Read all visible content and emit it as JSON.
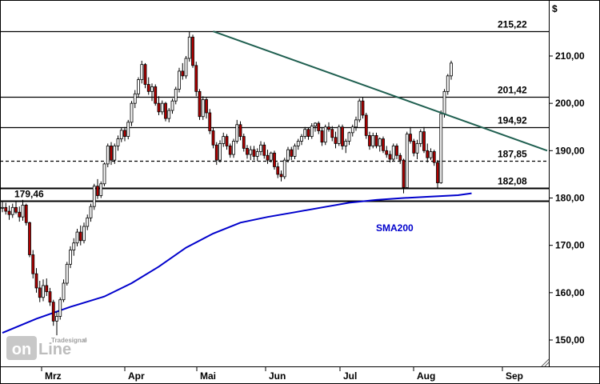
{
  "chart_data": {
    "type": "candlestick",
    "unit_label": "$",
    "ylim": [
      145,
      220
    ],
    "y_ticks": [
      "150,00",
      "160,00",
      "170,00",
      "180,00",
      "190,00",
      "200,00",
      "210,00"
    ],
    "y_tick_values": [
      150,
      160,
      170,
      180,
      190,
      200,
      210
    ],
    "x_ticks": [
      "Mrz",
      "Apr",
      "Mai",
      "Jun",
      "Jul",
      "Aug",
      "Sep"
    ],
    "horizontal_levels": [
      {
        "label": "215,22",
        "value": 215.22,
        "style": "solid"
      },
      {
        "label": "201,42",
        "value": 201.42,
        "style": "solid"
      },
      {
        "label": "194,92",
        "value": 194.92,
        "style": "solid"
      },
      {
        "label": "187,85",
        "value": 187.85,
        "style": "dashed"
      },
      {
        "label": "182,08",
        "value": 182.08,
        "style": "solid-bold"
      },
      {
        "label": "179,46",
        "value": 179.46,
        "style": "solid-bold"
      }
    ],
    "trendline": {
      "color": "#1f5f50",
      "start": {
        "bar": 62,
        "value": 215.2
      },
      "end": {
        "bar": 160,
        "value": 190.0
      }
    },
    "sma": {
      "name": "SMA200",
      "color": "#0000cc",
      "points": [
        [
          0,
          151.5
        ],
        [
          10,
          154.5
        ],
        [
          20,
          157.0
        ],
        [
          30,
          159.2
        ],
        [
          38,
          162.0
        ],
        [
          46,
          165.5
        ],
        [
          54,
          169.5
        ],
        [
          62,
          172.5
        ],
        [
          70,
          174.8
        ],
        [
          78,
          176.0
        ],
        [
          86,
          177.0
        ],
        [
          94,
          178.0
        ],
        [
          102,
          179.0
        ],
        [
          110,
          179.6
        ],
        [
          118,
          180.0
        ],
        [
          126,
          180.3
        ],
        [
          134,
          180.6
        ],
        [
          138,
          181.0
        ]
      ]
    },
    "candles": [
      [
        178.0,
        179.4,
        177.0,
        178.0
      ],
      [
        178.0,
        179.0,
        176.5,
        177.2
      ],
      [
        177.2,
        178.4,
        175.4,
        176.5
      ],
      [
        176.5,
        178.8,
        175.8,
        178.0
      ],
      [
        178.0,
        179.2,
        176.6,
        177.0
      ],
      [
        177.0,
        178.2,
        175.0,
        176.0
      ],
      [
        176.0,
        179.6,
        175.2,
        178.5
      ],
      [
        178.5,
        178.8,
        174.2,
        174.8
      ],
      [
        174.8,
        175.0,
        167.5,
        168.0
      ],
      [
        168.0,
        169.0,
        163.0,
        164.0
      ],
      [
        164.0,
        165.2,
        160.0,
        161.0
      ],
      [
        161.0,
        162.5,
        158.0,
        159.0
      ],
      [
        159.0,
        162.8,
        158.2,
        161.5
      ],
      [
        161.5,
        163.0,
        159.3,
        160.2
      ],
      [
        160.2,
        161.0,
        157.2,
        158.0
      ],
      [
        158.0,
        158.5,
        153.0,
        154.0
      ],
      [
        154.0,
        156.0,
        151.0,
        155.0
      ],
      [
        155.0,
        159.0,
        154.3,
        158.5
      ],
      [
        158.5,
        162.8,
        158.0,
        162.0
      ],
      [
        162.0,
        166.5,
        161.5,
        166.0
      ],
      [
        166.0,
        169.8,
        165.2,
        169.0
      ],
      [
        169.0,
        171.5,
        167.8,
        170.5
      ],
      [
        170.5,
        173.5,
        169.8,
        172.8
      ],
      [
        172.8,
        174.2,
        170.0,
        171.0
      ],
      [
        171.0,
        174.8,
        170.4,
        174.0
      ],
      [
        174.0,
        176.5,
        173.2,
        175.8
      ],
      [
        175.8,
        178.8,
        175.0,
        178.2
      ],
      [
        178.2,
        183.0,
        177.5,
        182.5
      ],
      [
        182.5,
        184.0,
        179.8,
        180.5
      ],
      [
        180.5,
        183.5,
        180.0,
        183.0
      ],
      [
        183.0,
        187.5,
        182.5,
        187.2
      ],
      [
        187.2,
        191.5,
        186.5,
        191.0
      ],
      [
        191.0,
        191.8,
        187.0,
        188.0
      ],
      [
        188.0,
        191.5,
        187.2,
        191.0
      ],
      [
        191.0,
        193.2,
        190.0,
        192.5
      ],
      [
        192.5,
        194.8,
        191.8,
        194.3
      ],
      [
        194.3,
        195.0,
        192.0,
        193.0
      ],
      [
        193.0,
        196.5,
        192.4,
        196.0
      ],
      [
        196.0,
        200.5,
        195.2,
        200.0
      ],
      [
        200.0,
        202.8,
        199.0,
        202.0
      ],
      [
        202.0,
        205.5,
        201.2,
        205.0
      ],
      [
        205.0,
        209.0,
        204.2,
        208.2
      ],
      [
        208.2,
        208.5,
        203.2,
        204.0
      ],
      [
        204.0,
        205.5,
        201.8,
        202.5
      ],
      [
        202.5,
        204.2,
        200.5,
        203.5
      ],
      [
        203.5,
        204.0,
        199.5,
        200.0
      ],
      [
        200.0,
        201.5,
        197.5,
        198.2
      ],
      [
        198.2,
        200.6,
        197.6,
        200.0
      ],
      [
        200.0,
        200.3,
        196.2,
        196.8
      ],
      [
        196.8,
        199.0,
        196.0,
        198.5
      ],
      [
        198.5,
        201.0,
        197.8,
        200.5
      ],
      [
        200.5,
        203.5,
        199.8,
        203.0
      ],
      [
        203.0,
        207.5,
        202.3,
        206.8
      ],
      [
        206.8,
        208.5,
        205.0,
        205.8
      ],
      [
        205.8,
        210.0,
        205.2,
        209.5
      ],
      [
        209.5,
        215.2,
        208.8,
        214.0
      ],
      [
        214.0,
        214.5,
        207.5,
        208.0
      ],
      [
        208.0,
        208.8,
        201.5,
        202.5
      ],
      [
        202.5,
        203.0,
        196.5,
        197.2
      ],
      [
        197.2,
        201.5,
        196.5,
        200.8
      ],
      [
        200.8,
        201.3,
        196.8,
        198.0
      ],
      [
        198.0,
        198.8,
        193.5,
        194.2
      ],
      [
        194.2,
        194.8,
        190.5,
        191.2
      ],
      [
        191.2,
        191.8,
        187.0,
        188.0
      ],
      [
        188.0,
        192.2,
        187.5,
        191.5
      ],
      [
        191.5,
        193.8,
        190.8,
        193.0
      ],
      [
        193.0,
        193.5,
        190.2,
        191.0
      ],
      [
        191.0,
        191.5,
        188.5,
        189.2
      ],
      [
        189.2,
        192.5,
        188.5,
        192.0
      ],
      [
        192.0,
        196.5,
        191.5,
        195.5
      ],
      [
        195.5,
        196.2,
        192.2,
        193.0
      ],
      [
        193.0,
        193.6,
        189.8,
        190.5
      ],
      [
        190.5,
        191.2,
        188.3,
        189.2
      ],
      [
        189.2,
        191.0,
        188.0,
        190.2
      ],
      [
        190.2,
        191.0,
        188.0,
        188.8
      ],
      [
        188.8,
        190.5,
        187.8,
        189.8
      ],
      [
        189.8,
        192.0,
        189.0,
        191.2
      ],
      [
        191.2,
        191.8,
        188.3,
        189.0
      ],
      [
        189.0,
        190.2,
        187.2,
        188.0
      ],
      [
        188.0,
        189.8,
        187.5,
        189.5
      ],
      [
        189.5,
        190.0,
        186.0,
        186.6
      ],
      [
        186.6,
        187.5,
        184.2,
        185.0
      ],
      [
        185.0,
        185.8,
        183.5,
        184.5
      ],
      [
        184.5,
        188.5,
        184.0,
        188.0
      ],
      [
        188.0,
        190.8,
        187.5,
        190.2
      ],
      [
        190.2,
        190.8,
        188.0,
        188.8
      ],
      [
        188.8,
        191.5,
        188.2,
        191.0
      ],
      [
        191.0,
        192.5,
        190.2,
        192.0
      ],
      [
        192.0,
        193.5,
        191.2,
        193.0
      ],
      [
        193.0,
        195.0,
        192.5,
        194.5
      ],
      [
        194.5,
        194.8,
        192.3,
        193.0
      ],
      [
        193.0,
        195.8,
        192.5,
        195.2
      ],
      [
        195.2,
        196.0,
        194.0,
        195.8
      ],
      [
        195.8,
        196.2,
        193.5,
        194.2
      ],
      [
        194.2,
        195.0,
        191.0,
        191.8
      ],
      [
        191.8,
        195.5,
        191.2,
        195.0
      ],
      [
        195.0,
        196.0,
        194.0,
        194.5
      ],
      [
        194.5,
        195.2,
        192.0,
        192.8
      ],
      [
        192.8,
        194.0,
        190.5,
        191.5
      ],
      [
        191.5,
        195.5,
        191.0,
        195.0
      ],
      [
        195.0,
        195.5,
        190.2,
        191.0
      ],
      [
        191.0,
        192.5,
        189.5,
        192.0
      ],
      [
        192.0,
        194.0,
        191.2,
        193.8
      ],
      [
        193.8,
        195.5,
        193.0,
        195.0
      ],
      [
        195.0,
        197.2,
        194.2,
        196.5
      ],
      [
        196.5,
        201.0,
        196.0,
        200.5
      ],
      [
        200.5,
        201.3,
        196.8,
        197.5
      ],
      [
        197.5,
        198.0,
        192.5,
        193.2
      ],
      [
        193.2,
        194.0,
        190.2,
        191.0
      ],
      [
        191.0,
        193.8,
        190.5,
        193.2
      ],
      [
        193.2,
        193.8,
        190.5,
        191.0
      ],
      [
        191.0,
        192.8,
        189.8,
        192.5
      ],
      [
        192.5,
        193.0,
        189.5,
        190.0
      ],
      [
        190.0,
        191.0,
        188.5,
        189.2
      ],
      [
        189.2,
        190.0,
        187.5,
        188.2
      ],
      [
        188.2,
        191.5,
        187.8,
        191.0
      ],
      [
        191.0,
        191.5,
        188.2,
        189.0
      ],
      [
        189.0,
        189.5,
        187.2,
        188.0
      ],
      [
        188.0,
        188.3,
        181.0,
        182.2
      ],
      [
        182.2,
        194.0,
        182.0,
        193.5
      ],
      [
        193.5,
        195.0,
        191.5,
        192.0
      ],
      [
        192.0,
        192.5,
        188.8,
        189.5
      ],
      [
        189.5,
        192.3,
        188.2,
        191.5
      ],
      [
        191.5,
        194.5,
        190.8,
        194.0
      ],
      [
        194.0,
        195.0,
        189.5,
        190.0
      ],
      [
        190.0,
        191.5,
        187.5,
        188.5
      ],
      [
        188.5,
        190.5,
        188.0,
        189.8
      ],
      [
        189.8,
        190.2,
        186.8,
        187.5
      ],
      [
        187.5,
        188.0,
        182.0,
        183.2
      ],
      [
        183.2,
        198.5,
        183.0,
        197.8
      ],
      [
        197.8,
        203.0,
        197.0,
        202.5
      ],
      [
        202.5,
        206.2,
        201.8,
        205.8
      ],
      [
        205.8,
        209.0,
        205.0,
        208.5
      ]
    ]
  },
  "watermark": {
    "brand": "Tradesignal",
    "reg": "®",
    "word_left": "on",
    "word_right": "Line"
  }
}
